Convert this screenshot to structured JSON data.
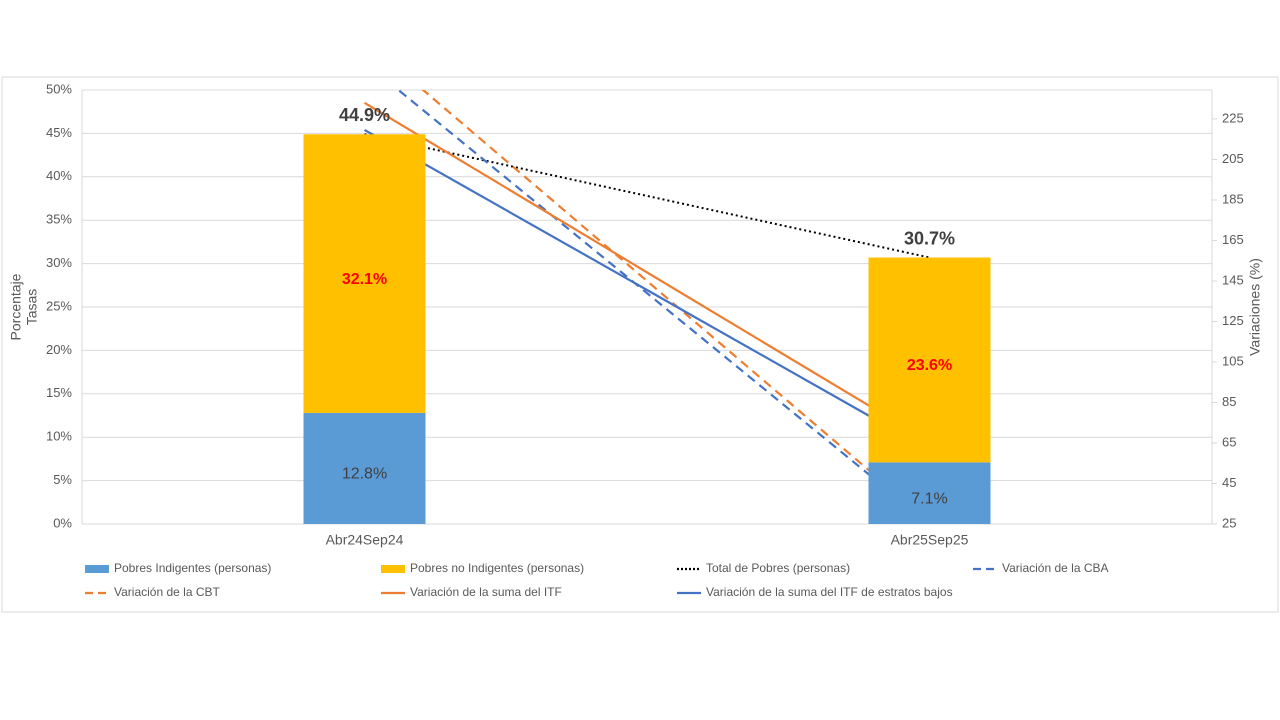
{
  "chart_data": {
    "type": "bar",
    "categories": [
      "Abr24Sep24",
      "Abr25Sep25"
    ],
    "ylabel": [
      "Porcentaje",
      "Tasas"
    ],
    "y2label": "Variaciones (%)",
    "ylim": [
      0,
      50
    ],
    "yticks": [
      {
        "value": 0,
        "label": "0%"
      },
      {
        "value": 5,
        "label": "5%"
      },
      {
        "value": 10,
        "label": "10%"
      },
      {
        "value": 15,
        "label": "15%"
      },
      {
        "value": 20,
        "label": "20%"
      },
      {
        "value": 25,
        "label": "25%"
      },
      {
        "value": 30,
        "label": "30%"
      },
      {
        "value": 35,
        "label": "35%"
      },
      {
        "value": 40,
        "label": "40%"
      },
      {
        "value": 45,
        "label": "45%"
      },
      {
        "value": 50,
        "label": "50%"
      }
    ],
    "y2lim": [
      25,
      239.3
    ],
    "y2ticks": [
      25,
      45,
      65,
      85,
      105,
      125,
      145,
      165,
      185,
      205,
      225
    ],
    "grid": true,
    "legend": "bottom",
    "series": [
      {
        "name": "Pobres Indigentes (personas)",
        "mark": "bar",
        "color": "#5b9bd5",
        "values": [
          12.8,
          7.1
        ],
        "value_labels": [
          "12.8%",
          "7.1%"
        ],
        "label_color": "#404040"
      },
      {
        "name": "Pobres no Indigentes (personas)",
        "mark": "bar",
        "color": "#ffc000",
        "values": [
          32.1,
          23.6
        ],
        "value_labels": [
          "32.1%",
          "23.6%"
        ],
        "label_color": "#ff0000"
      },
      {
        "name": "Total de Pobres (personas)",
        "mark": "line",
        "dash": "dotted",
        "color": "#000000",
        "values": [
          44.9,
          30.7
        ],
        "value_labels": [
          "44.9%",
          "30.7%"
        ],
        "label_color": "#404040"
      },
      {
        "name": "Variación de la CBA",
        "mark": "line",
        "dash": "dashed",
        "axis": "y2",
        "color": "#4472c4",
        "values": [
          253,
          25
        ]
      },
      {
        "name": "Variación de la CBT",
        "mark": "line",
        "dash": "dashed",
        "axis": "y2",
        "color": "#ed7d31",
        "values": [
          264,
          26
        ]
      },
      {
        "name": "Variación de la suma del ITF",
        "mark": "line",
        "dash": "solid",
        "axis": "y2",
        "color": "#ed7d31",
        "values": [
          233,
          65.5
        ]
      },
      {
        "name": "Variación de la suma del ITF de estratos bajos",
        "mark": "line",
        "dash": "solid",
        "axis": "y2",
        "color": "#4472c4",
        "values": [
          219.6,
          61.5
        ]
      }
    ]
  }
}
